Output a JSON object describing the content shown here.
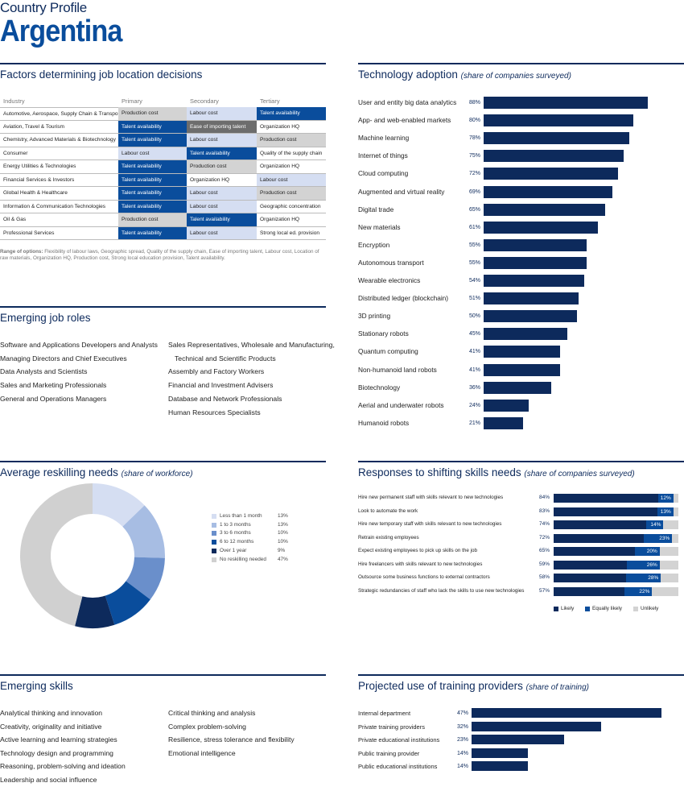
{
  "header": {
    "kicker": "Country Profile",
    "country": "Argentina"
  },
  "sections": {
    "job_location": "Factors determining job location decisions",
    "tech": "Technology adoption",
    "tech_sub": "(share of companies surveyed)",
    "roles": "Emerging job roles",
    "reskill": "Average reskilling needs",
    "reskill_sub": "(share of workforce)",
    "responses": "Responses to shifting skills needs",
    "responses_sub": "(share of companies surveyed)",
    "skills": "Emerging skills",
    "training": "Projected use of training providers",
    "training_sub": "(share of training)"
  },
  "colors": {
    "navy": "#0d2a5c",
    "blue": "#0a4d9c",
    "light": "#d5def2",
    "gray": "#d3d3d3",
    "darkgray": "#6d6d6d"
  },
  "job_table": {
    "headers": [
      "Industry",
      "Primary",
      "Secondary",
      "Tertiary"
    ],
    "rows": [
      [
        "Automotive, Aerospace, Supply Chain & Transport",
        "Production cost",
        "Labour cost",
        "Talent availability"
      ],
      [
        "Aviation, Travel & Tourism",
        "Talent availability",
        "Ease of importing talent",
        "Organization HQ"
      ],
      [
        "Chemistry, Advanced Materials & Biotechnology",
        "Talent availability",
        "Labour cost",
        "Production cost"
      ],
      [
        "Consumer",
        "Labour cost",
        "Talent availability",
        "Quality of the supply chain"
      ],
      [
        "Energy Utilities & Technologies",
        "Talent availability",
        "Production cost",
        "Organization HQ"
      ],
      [
        "Financial Services & Investors",
        "Talent availability",
        "Organization HQ",
        "Labour cost"
      ],
      [
        "Global Health & Healthcare",
        "Talent availability",
        "Labour cost",
        "Production cost"
      ],
      [
        "Information & Communication Technologies",
        "Talent availability",
        "Labour cost",
        "Geographic concentration"
      ],
      [
        "Oil & Gas",
        "Production cost",
        "Talent availability",
        "Organization HQ"
      ],
      [
        "Professional Services",
        "Talent availability",
        "Labour cost",
        "Strong local ed. provision"
      ]
    ],
    "note_label": "Range of options:",
    "note": "Flexibility of labour laws, Geographic spread, Quality of the supply chain, Ease of importing talent, Labour cost, Location of raw materials, Organization HQ, Production cost, Strong local education provision, Talent availability."
  },
  "roles_left": [
    "Software and Applications Developers and Analysts",
    "Managing Directors and Chief Executives",
    "Data Analysts and Scientists",
    "Sales and Marketing Professionals",
    "General and Operations Managers"
  ],
  "roles_right": [
    "Sales Representatives, Wholesale and Manufacturing,",
    "Technical and Scientific Products",
    "Assembly and Factory Workers",
    "Financial and Investment Advisers",
    "Database and Network Professionals",
    "Human Resources Specialists"
  ],
  "skills_left": [
    "Analytical thinking and innovation",
    "Creativity, originality and initiative",
    "Active learning and learning strategies",
    "Technology design and programming",
    "Reasoning, problem-solving and ideation",
    "Leadership and social influence"
  ],
  "skills_right": [
    "Critical thinking and analysis",
    "Complex problem-solving",
    "Resilience, stress tolerance and flexibility",
    "Emotional intelligence"
  ],
  "chart_data": [
    {
      "type": "bar",
      "orientation": "horizontal",
      "categories": [
        "User and entity big data analytics",
        "App- and web-enabled markets",
        "Machine learning",
        "Internet of things",
        "Cloud computing",
        "Augmented and virtual reality",
        "Digital trade",
        "New materials",
        "Encryption",
        "Autonomous transport",
        "Wearable electronics",
        "Distributed ledger (blockchain)",
        "3D printing",
        "Stationary robots",
        "Quantum computing",
        "Non-humanoid land robots",
        "Biotechnology",
        "Aerial and underwater robots",
        "Humanoid robots"
      ],
      "values": [
        88,
        80,
        78,
        75,
        72,
        69,
        65,
        61,
        55,
        55,
        54,
        51,
        50,
        45,
        41,
        41,
        36,
        24,
        21
      ],
      "unit": "%"
    },
    {
      "type": "pie",
      "donut": true,
      "categories": [
        "Less than 1 month",
        "1 to 3 months",
        "3 to 6 months",
        "6 to 12 months",
        "Over 1 year",
        "No reskilling needed"
      ],
      "values": [
        13,
        13,
        10,
        10,
        9,
        47
      ],
      "colors": [
        "#d5def2",
        "#a7bde3",
        "#6a8fcb",
        "#0a4d9c",
        "#0d2a5c",
        "#d0d0d0"
      ],
      "legend": "right"
    },
    {
      "type": "bar",
      "stacked": true,
      "orientation": "horizontal",
      "categories": [
        "Hire new permanent staff with skills relevant to new technologies",
        "Look to automate the work",
        "Hire new temporary staff with skills relevant to new technologies",
        "Retrain existing employees",
        "Expect existing employees to pick up skills on the job",
        "Hire freelancers with skills relevant to new technologies",
        "Outsource some business functions to external contractors",
        "Strategic redundancies of staff who lack the skills to use new technologies"
      ],
      "series": [
        {
          "name": "Likely",
          "values": [
            84,
            83,
            74,
            72,
            65,
            59,
            58,
            57
          ],
          "color": "#0d2a5c"
        },
        {
          "name": "Equally likely",
          "values": [
            12,
            13,
            14,
            23,
            20,
            26,
            28,
            22
          ],
          "color": "#0a4d9c"
        },
        {
          "name": "Unlikely",
          "values": [
            4,
            4,
            12,
            5,
            15,
            15,
            14,
            21
          ],
          "color": "#d3d3d3"
        }
      ],
      "legend": "bottom"
    },
    {
      "type": "bar",
      "orientation": "horizontal",
      "categories": [
        "Internal department",
        "Private training providers",
        "Private educational institutions",
        "Public training provider",
        "Public educational institutions"
      ],
      "values": [
        47,
        32,
        23,
        14,
        14
      ],
      "unit": "%"
    }
  ]
}
